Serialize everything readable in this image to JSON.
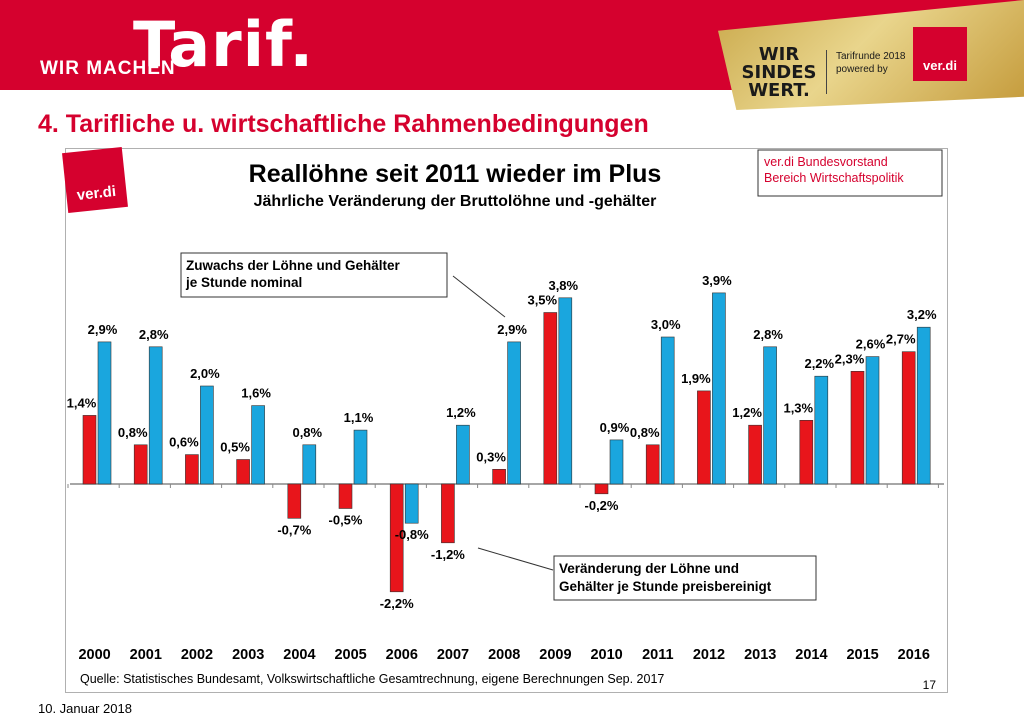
{
  "header": {
    "tagline": "WIR MACHEN",
    "brand": "Tarif.",
    "campaign_lines": [
      "WIR",
      "SINDES",
      "WERT."
    ],
    "campaign_sub_1": "Tarifrunde 2018",
    "campaign_sub_2": "powered by",
    "logo_text": "ver.di"
  },
  "slide": {
    "title": "4. Tarifliche u. wirtschaftliche Rahmenbedingungen",
    "date": "10. Januar 2018",
    "logo_text": "ver.di"
  },
  "chart_data": {
    "type": "bar",
    "title": "Reallöhne seit 2011 wieder im Plus",
    "subtitle": "Jährliche Veränderung der Bruttolöhne und -gehälter",
    "categories": [
      "2000",
      "2001",
      "2002",
      "2003",
      "2004",
      "2005",
      "2006",
      "2007",
      "2008",
      "2009",
      "2010",
      "2011",
      "2012",
      "2013",
      "2014",
      "2015",
      "2016"
    ],
    "series": [
      {
        "name": "Veränderung der Löhne und Gehälter je Stunde preisbereinigt",
        "color": "#e8151b",
        "values": [
          1.4,
          0.8,
          0.6,
          0.5,
          -0.7,
          -0.5,
          -2.2,
          -1.2,
          0.3,
          3.5,
          -0.2,
          0.8,
          1.9,
          1.2,
          1.3,
          2.3,
          2.7
        ],
        "labels": [
          "1,4%",
          "0,8%",
          "0,6%",
          "0,5%",
          "-0,7%",
          "-0,5%",
          "-2,2%",
          "-1,2%",
          "0,3%",
          "3,5%",
          "-0,2%",
          "0,8%",
          "1,9%",
          "1,2%",
          "1,3%",
          "2,3%",
          "2,7%"
        ]
      },
      {
        "name": "Zuwachs der Löhne und Gehälter je Stunde nominal",
        "color": "#1aa6de",
        "values": [
          2.9,
          2.8,
          2.0,
          1.6,
          0.8,
          1.1,
          -0.8,
          1.2,
          2.9,
          3.8,
          0.9,
          3.0,
          3.9,
          2.8,
          2.2,
          2.6,
          3.2
        ],
        "labels": [
          "2,9%",
          "2,8%",
          "2,0%",
          "1,6%",
          "0,8%",
          "1,1%",
          "-0,8%",
          "1,2%",
          "2,9%",
          "3,8%",
          "0,9%",
          "3,0%",
          "3,9%",
          "2,8%",
          "2,2%",
          "2,6%",
          "3,2%"
        ]
      }
    ],
    "annotations": {
      "nominal_lines": [
        "Zuwachs der Löhne und Gehälter",
        "je Stunde nominal"
      ],
      "real_lines": [
        "Veränderung der Löhne und",
        "Gehälter je Stunde preisbereinigt"
      ],
      "source_lines": [
        "ver.di Bundesvorstand",
        "Bereich Wirtschaftspolitik"
      ]
    },
    "footer_source": "Quelle: Statistisches Bundesamt, Volkswirtschaftliche Gesamtrechnung, eigene Berechnungen Sep. 2017",
    "page_number": "17",
    "ylim": [
      -2.4,
      4.2
    ],
    "grid": false,
    "legend": "callouts"
  }
}
